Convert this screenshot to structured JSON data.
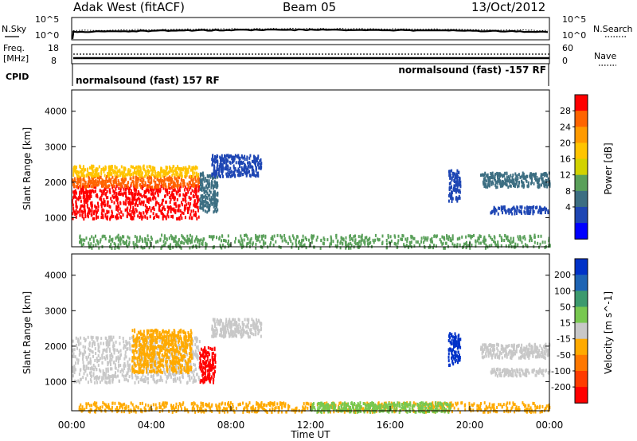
{
  "header": {
    "station": "Adak West (fitACF)",
    "beam": "Beam 05",
    "date": "13/Oct/2012"
  },
  "noise_panel": {
    "left_label": "N.Sky",
    "right_label": "N.Search",
    "left_ticks": [
      "10^5",
      "10^0"
    ],
    "right_ticks": [
      "10^5",
      "10^0"
    ]
  },
  "freq_panel": {
    "left_label_line1": "Freq.",
    "left_label_line2": "[MHz]",
    "right_label": "Nave",
    "left_ticks": [
      "18",
      "8"
    ],
    "right_ticks": [
      "60",
      "0"
    ],
    "cpid_label": "CPID",
    "cpid_left": "normalsound (fast) 157 RF",
    "cpid_right": "normalsound (fast) -157 RF"
  },
  "chart_data": [
    {
      "type": "heatmap",
      "name": "power",
      "ylabel": "Slant Range [km]",
      "colorbar_label": "Power [dB]",
      "yticks": [
        "4000",
        "3000",
        "2000",
        "1000"
      ],
      "ylim": [
        180,
        4600
      ],
      "colorbar_ticks": [
        "28",
        "24",
        "20",
        "16",
        "12",
        "8",
        "4"
      ],
      "colorbar_colors": [
        "#ff0000",
        "#ff6400",
        "#ff9a00",
        "#ffc400",
        "#d2d200",
        "#5aa05a",
        "#3c6e82",
        "#1e46b4",
        "#0000ff"
      ],
      "regions": [
        {
          "t0": 0.0,
          "t1": 6.4,
          "r0": 1000,
          "r1": 1950,
          "color": "#ff0000"
        },
        {
          "t0": 0.0,
          "t1": 6.4,
          "r0": 1900,
          "r1": 2200,
          "color": "#ff6400"
        },
        {
          "t0": 0.0,
          "t1": 6.4,
          "r0": 2200,
          "r1": 2500,
          "color": "#ffc400"
        },
        {
          "t0": 6.4,
          "t1": 7.3,
          "r0": 1200,
          "r1": 2300,
          "color": "#3c6e82"
        },
        {
          "t0": 7.0,
          "t1": 9.5,
          "r0": 2200,
          "r1": 2800,
          "color": "#1e46b4"
        },
        {
          "t0": 0.3,
          "t1": 24.0,
          "r0": 180,
          "r1": 550,
          "color": "#5aa05a"
        },
        {
          "t0": 18.9,
          "t1": 19.5,
          "r0": 1500,
          "r1": 2400,
          "color": "#1e46b4"
        },
        {
          "t0": 20.5,
          "t1": 24.0,
          "r0": 1900,
          "r1": 2300,
          "color": "#3c6e82"
        },
        {
          "t0": 21.0,
          "t1": 24.0,
          "r0": 1150,
          "r1": 1350,
          "color": "#1e46b4"
        }
      ]
    },
    {
      "type": "heatmap",
      "name": "velocity",
      "ylabel": "Slant Range [km]",
      "colorbar_label": "Velocity [m s^-1]",
      "yticks": [
        "4000",
        "3000",
        "2000",
        "1000"
      ],
      "ylim": [
        180,
        4600
      ],
      "colorbar_ticks": [
        "200",
        "100",
        "50",
        "15",
        "-15",
        "-50",
        "-100",
        "-200"
      ],
      "colorbar_colors": [
        "#0032c8",
        "#1e64b4",
        "#3c9a6e",
        "#78c850",
        "#c8c8c8",
        "#ffaa00",
        "#ff7800",
        "#ff3c00",
        "#ff0000"
      ],
      "regions": [
        {
          "t0": 0.0,
          "t1": 6.4,
          "r0": 1000,
          "r1": 2300,
          "color": "#c8c8c8"
        },
        {
          "t0": 3.0,
          "t1": 6.0,
          "r0": 1300,
          "r1": 2500,
          "color": "#ffaa00"
        },
        {
          "t0": 6.4,
          "t1": 7.2,
          "r0": 1000,
          "r1": 2000,
          "color": "#ff0000"
        },
        {
          "t0": 7.0,
          "t1": 9.5,
          "r0": 2300,
          "r1": 2800,
          "color": "#c8c8c8"
        },
        {
          "t0": 0.3,
          "t1": 24.0,
          "r0": 180,
          "r1": 450,
          "color": "#ffaa00"
        },
        {
          "t0": 12.0,
          "t1": 19.0,
          "r0": 180,
          "r1": 450,
          "color": "#78c850"
        },
        {
          "t0": 18.9,
          "t1": 19.5,
          "r0": 1500,
          "r1": 2400,
          "color": "#0032c8"
        },
        {
          "t0": 20.5,
          "t1": 24.0,
          "r0": 1700,
          "r1": 2100,
          "color": "#c8c8c8"
        },
        {
          "t0": 21.0,
          "t1": 24.0,
          "r0": 1200,
          "r1": 1400,
          "color": "#c8c8c8"
        }
      ]
    }
  ],
  "x_axis": {
    "label": "Time UT",
    "ticks": [
      "00:00",
      "04:00",
      "08:00",
      "12:00",
      "16:00",
      "20:00",
      "00:00"
    ],
    "range_hours": [
      0,
      24
    ]
  }
}
